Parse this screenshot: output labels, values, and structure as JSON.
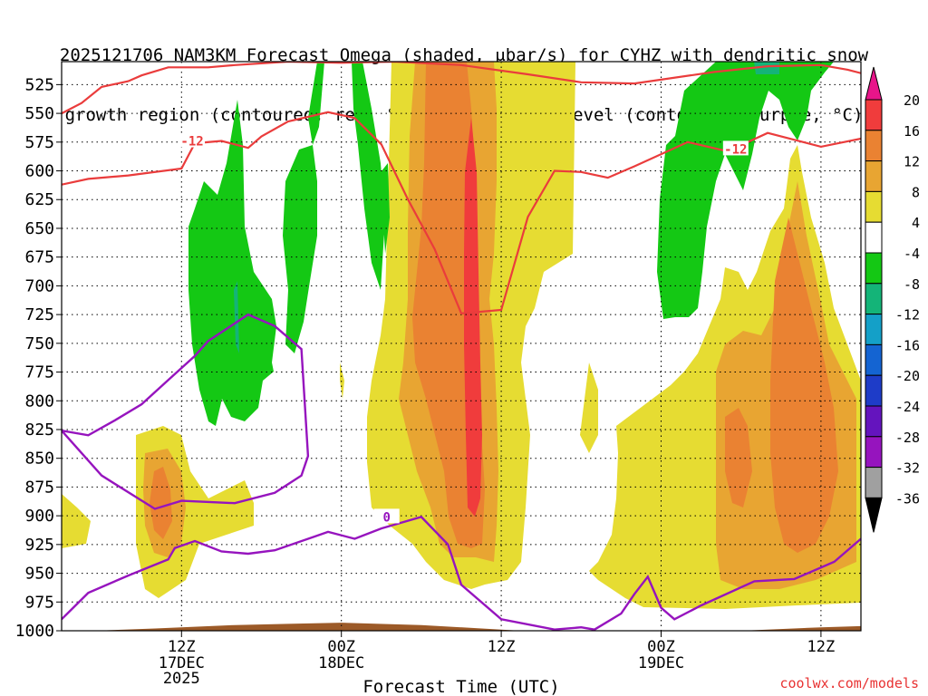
{
  "title": {
    "line1": "2025121706 NAM3KM Forecast Omega (shaded, μbar/s) for CYHZ with dendritic snow",
    "line2": "growth region (contoured, red, °C) and freezing level (contoured, purple, °C)"
  },
  "chart_data": {
    "type": "area",
    "title": "2025121706 NAM3KM Forecast Omega (shaded, μbar/s) for CYHZ with dendritic snow growth region (contoured, red, °C) and freezing level (contoured, purple, °C)",
    "xlabel": "Forecast Time (UTC)",
    "ylabel": "",
    "x_range_hours_from_00Z_17DEC": [
      3,
      63
    ],
    "ylim": [
      1000,
      505
    ],
    "y_ticks": [
      525,
      550,
      575,
      600,
      625,
      650,
      675,
      700,
      725,
      750,
      775,
      800,
      825,
      850,
      875,
      900,
      925,
      950,
      975,
      1000
    ],
    "x_ticks": [
      {
        "hour": 12,
        "label": "12Z",
        "sub": "17DEC",
        "sub2": "2025"
      },
      {
        "hour": 24,
        "label": "00Z",
        "sub": "18DEC",
        "sub2": ""
      },
      {
        "hour": 36,
        "label": "12Z",
        "sub": "",
        "sub2": ""
      },
      {
        "hour": 48,
        "label": "00Z",
        "sub": "19DEC",
        "sub2": ""
      },
      {
        "hour": 60,
        "label": "12Z",
        "sub": "",
        "sub2": ""
      }
    ],
    "grid": true,
    "colorbar": {
      "labels": [
        "20",
        "16",
        "12",
        "8",
        "4",
        "-4",
        "-8",
        "-12",
        "-16",
        "-20",
        "-24",
        "-28",
        "-32",
        "-36"
      ],
      "colors": [
        "#e8158a",
        "#f03c3c",
        "#ea8232",
        "#e8a532",
        "#e6dc32",
        "#ffffff",
        "#14c814",
        "#14b478",
        "#14a0c8",
        "#1464d2",
        "#1e3cc8",
        "#6414be",
        "#9614be",
        "#a0a0a0",
        "#000000"
      ]
    },
    "contour_labels": {
      "dgz_left": "-12",
      "dgz_right": "-12",
      "freezing": "0"
    },
    "dgz_top": [
      [
        3,
        550
      ],
      [
        4.5,
        541
      ],
      [
        6,
        527
      ],
      [
        8,
        522
      ],
      [
        9,
        517
      ],
      [
        11,
        510
      ],
      [
        14,
        510
      ],
      [
        16,
        508
      ],
      [
        20,
        505
      ],
      [
        24,
        506
      ],
      [
        28,
        505
      ],
      [
        33,
        508
      ],
      [
        38,
        516
      ],
      [
        42,
        523
      ],
      [
        46,
        524
      ],
      [
        52,
        514
      ],
      [
        56,
        509
      ],
      [
        60,
        508
      ],
      [
        62,
        512
      ],
      [
        63,
        515
      ]
    ],
    "dgz_bottom": [
      [
        3,
        612
      ],
      [
        5,
        607
      ],
      [
        8,
        604
      ],
      [
        12,
        598
      ],
      [
        13,
        576
      ],
      [
        15,
        574
      ],
      [
        17,
        580
      ],
      [
        18,
        570
      ],
      [
        20,
        557
      ],
      [
        23,
        549
      ],
      [
        25,
        554
      ],
      [
        27,
        577
      ],
      [
        29,
        625
      ],
      [
        31,
        668
      ],
      [
        33,
        724
      ],
      [
        36,
        721
      ],
      [
        38,
        640
      ],
      [
        40,
        600
      ],
      [
        42,
        601
      ],
      [
        44,
        606
      ],
      [
        46,
        596
      ],
      [
        50,
        575
      ],
      [
        53,
        583
      ],
      [
        56,
        567
      ],
      [
        60,
        579
      ],
      [
        63,
        572
      ]
    ],
    "freezing_level": [
      [
        3,
        990
      ],
      [
        5,
        967
      ],
      [
        8,
        952
      ],
      [
        11,
        938
      ],
      [
        11.5,
        928
      ],
      [
        13,
        922
      ],
      [
        15,
        931
      ],
      [
        17,
        933
      ],
      [
        19,
        930
      ],
      [
        22,
        918
      ],
      [
        23,
        914
      ],
      [
        25,
        920
      ],
      [
        27,
        911
      ],
      [
        30,
        901
      ],
      [
        32,
        925
      ],
      [
        33,
        960
      ],
      [
        36,
        990
      ],
      [
        40,
        999
      ],
      [
        42,
        997
      ],
      [
        43,
        999
      ],
      [
        45,
        985
      ],
      [
        46,
        968
      ],
      [
        47,
        953
      ],
      [
        48,
        980
      ],
      [
        49,
        990
      ],
      [
        51,
        978
      ],
      [
        55,
        957
      ],
      [
        58,
        955
      ],
      [
        61,
        940
      ],
      [
        63,
        920
      ],
      [
        3,
        826
      ],
      [
        5,
        830
      ],
      [
        7,
        817
      ],
      [
        9,
        803
      ],
      [
        11,
        782
      ],
      [
        13,
        761
      ],
      [
        14,
        748
      ],
      [
        17,
        725
      ],
      [
        19,
        735
      ],
      [
        21,
        755
      ],
      [
        21.5,
        848
      ],
      [
        21,
        865
      ],
      [
        19,
        880
      ],
      [
        16,
        889
      ],
      [
        12,
        887
      ],
      [
        10,
        894
      ],
      [
        6,
        865
      ],
      [
        5,
        852
      ]
    ],
    "ground_level": [
      [
        3,
        1001
      ],
      [
        10,
        998
      ],
      [
        16,
        995
      ],
      [
        20,
        994
      ],
      [
        24,
        993
      ],
      [
        30,
        995
      ],
      [
        36,
        999
      ],
      [
        42,
        1003
      ],
      [
        48,
        1003
      ],
      [
        54,
        1000
      ],
      [
        60,
        997
      ],
      [
        63,
        996
      ]
    ]
  },
  "credit": "coolwx.com/models"
}
